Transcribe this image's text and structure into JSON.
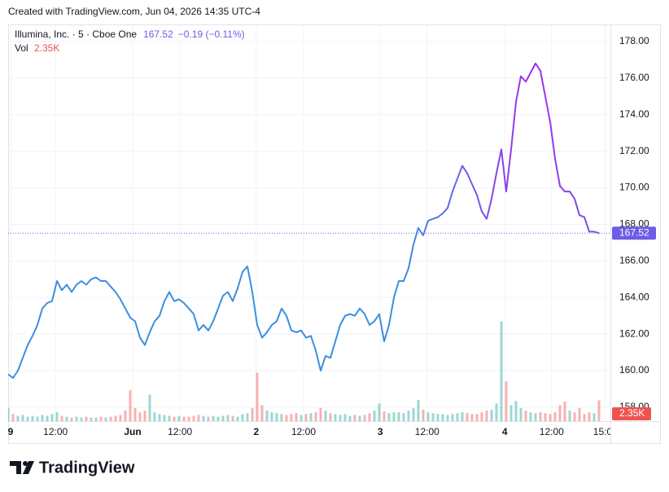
{
  "watermark": "Created with TradingView.com, Jun 04, 2026 14:35 UTC-4",
  "brand": "TradingView",
  "chart_data": {
    "type": "line",
    "title": "Illumina, Inc. · 5 · Cboe One",
    "last_price": 167.52,
    "change": "−0.19 (−0.11%)",
    "grid": true,
    "gradient": [
      "#3b8ee0",
      "#3b8ee0",
      "#a22cf0",
      "#6c5ce6"
    ],
    "x": [
      0,
      1,
      2,
      3,
      4,
      5,
      6,
      7,
      8,
      9,
      10,
      11,
      12,
      13,
      14,
      15,
      16,
      17,
      18,
      19,
      20,
      21,
      22,
      23,
      24,
      25,
      26,
      27,
      28,
      29,
      30,
      31,
      32,
      33,
      34,
      35,
      36,
      37,
      38,
      39,
      40,
      41,
      42,
      43,
      44,
      45,
      46,
      47,
      48,
      49,
      50,
      51,
      52,
      53,
      54,
      55,
      56,
      57,
      58,
      59,
      60,
      61,
      62,
      63,
      64,
      65,
      66,
      67,
      68,
      69,
      70,
      71,
      72,
      73,
      74,
      75,
      76,
      77,
      78,
      79,
      80,
      81,
      82,
      83,
      84,
      85,
      86,
      87,
      88,
      89,
      90,
      91,
      92,
      93,
      94,
      95,
      96,
      97,
      98,
      99,
      100,
      101,
      102,
      103,
      104,
      105,
      106,
      107,
      108,
      109,
      110,
      111,
      112,
      113,
      114,
      115,
      116,
      117,
      118,
      119,
      120,
      121
    ],
    "xlim": [
      0,
      122
    ],
    "xticks": [
      {
        "value": 0.5,
        "label": "9"
      },
      {
        "value": 9.7,
        "label": "12:00"
      },
      {
        "value": 25.5,
        "label": "Jun"
      },
      {
        "value": 35.2,
        "label": "12:00"
      },
      {
        "value": 50.8,
        "label": "2"
      },
      {
        "value": 60.5,
        "label": "12:00"
      },
      {
        "value": 76.2,
        "label": "3"
      },
      {
        "value": 85.8,
        "label": "12:00"
      },
      {
        "value": 101.7,
        "label": "4"
      },
      {
        "value": 111.3,
        "label": "12:00"
      },
      {
        "value": 122.3,
        "label": "15:00"
      }
    ],
    "ylim": [
      157.24,
      178.89
    ],
    "yticks": [
      {
        "value": 158,
        "label": "158.00"
      },
      {
        "value": 160,
        "label": "160.00"
      },
      {
        "value": 162,
        "label": "162.00"
      },
      {
        "value": 164,
        "label": "164.00"
      },
      {
        "value": 166,
        "label": "166.00"
      },
      {
        "value": 168,
        "label": "168.00"
      },
      {
        "value": 170,
        "label": "170.00"
      },
      {
        "value": 172,
        "label": "172.00"
      },
      {
        "value": 174,
        "label": "174.00"
      },
      {
        "value": 176,
        "label": "176.00"
      },
      {
        "value": 178,
        "label": "178.00"
      }
    ],
    "series": [
      {
        "name": "Illumina, Inc.",
        "color": "#6c5ce6",
        "values": [
          159.8,
          159.6,
          160.0,
          160.7,
          161.4,
          161.9,
          162.5,
          163.4,
          163.7,
          163.8,
          164.9,
          164.4,
          164.7,
          164.3,
          164.7,
          164.9,
          164.7,
          165.0,
          165.1,
          164.9,
          164.9,
          164.6,
          164.3,
          163.9,
          163.4,
          162.9,
          162.7,
          161.8,
          161.4,
          162.1,
          162.7,
          163.0,
          163.8,
          164.3,
          163.8,
          163.9,
          163.7,
          163.4,
          163.1,
          162.2,
          162.5,
          162.2,
          162.7,
          163.4,
          164.1,
          164.3,
          163.8,
          164.5,
          165.4,
          165.7,
          164.3,
          162.5,
          161.8,
          162.1,
          162.5,
          162.7,
          163.4,
          163.0,
          162.2,
          162.1,
          162.2,
          161.8,
          161.9,
          161.1,
          160.0,
          160.8,
          160.7,
          161.6,
          162.5,
          163.0,
          163.1,
          163.0,
          163.4,
          163.1,
          162.5,
          162.7,
          163.1,
          161.6,
          162.5,
          164.0,
          164.9,
          164.9,
          165.6,
          166.9,
          167.8,
          167.4,
          168.2,
          168.3,
          168.4,
          168.6,
          168.9,
          169.8,
          170.5,
          171.2,
          170.8,
          170.2,
          169.6,
          168.7,
          168.3,
          169.4,
          170.8,
          172.1,
          169.8,
          172.1,
          174.7,
          176.1,
          175.8,
          176.3,
          176.8,
          176.4,
          175.0,
          173.6,
          171.6,
          170.1,
          169.8,
          169.8,
          169.4,
          168.5,
          168.4,
          167.6,
          167.6,
          167.52
        ]
      }
    ],
    "volume": {
      "name": "Vol",
      "up_color": "#26a69a",
      "down_color": "#ef5350",
      "ylim": [
        0,
        12
      ],
      "values": [
        1.5,
        0.8,
        0.6,
        0.7,
        0.5,
        0.6,
        0.5,
        0.7,
        0.6,
        0.8,
        1.0,
        0.6,
        0.5,
        0.4,
        0.5,
        0.4,
        0.5,
        0.4,
        0.4,
        0.5,
        0.4,
        0.5,
        0.6,
        0.7,
        1.2,
        3.5,
        1.5,
        1.0,
        1.2,
        3.0,
        1.0,
        0.8,
        0.7,
        0.6,
        0.5,
        0.6,
        0.5,
        0.5,
        0.6,
        0.7,
        0.6,
        0.5,
        0.6,
        0.5,
        0.6,
        0.7,
        0.6,
        0.5,
        0.8,
        0.9,
        1.5,
        5.5,
        1.8,
        1.2,
        1.0,
        0.9,
        0.8,
        0.7,
        0.8,
        0.9,
        0.7,
        0.8,
        0.9,
        1.0,
        1.5,
        1.2,
        0.9,
        0.8,
        0.7,
        0.8,
        0.6,
        0.7,
        0.6,
        0.7,
        0.9,
        1.2,
        2.0,
        1.1,
        0.9,
        1.0,
        1.0,
        0.9,
        1.2,
        1.5,
        2.4,
        1.3,
        1.0,
        0.9,
        0.8,
        0.8,
        0.7,
        0.8,
        0.9,
        1.0,
        0.9,
        0.8,
        0.8,
        1.0,
        1.2,
        1.3,
        2.0,
        11.3,
        4.5,
        1.8,
        2.3,
        1.5,
        1.2,
        1.0,
        0.9,
        1.0,
        0.9,
        0.8,
        1.0,
        1.8,
        2.2,
        1.2,
        1.0,
        1.5,
        0.8,
        1.0,
        0.9,
        2.35
      ],
      "value_labels": {
        "121": "2.35K"
      }
    }
  }
}
